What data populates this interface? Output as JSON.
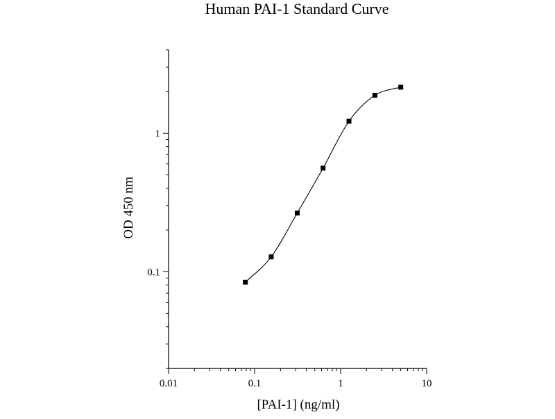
{
  "chart_data": {
    "type": "scatter",
    "title": "Human PAI-1 Standard Curve",
    "xlabel": "[PAI-1] (ng/ml)",
    "ylabel": "OD 450 nm",
    "xscale": "log",
    "yscale": "log",
    "xlim": [
      0.01,
      10
    ],
    "ylim": [
      0.02,
      4
    ],
    "x_ticks": [
      {
        "value": 0.01,
        "label": "0.01"
      },
      {
        "value": 0.1,
        "label": "0.1"
      },
      {
        "value": 1,
        "label": "1"
      },
      {
        "value": 10,
        "label": "10"
      }
    ],
    "y_ticks": [
      {
        "value": 0.1,
        "label": "0.1"
      },
      {
        "value": 1,
        "label": "1"
      }
    ],
    "grid": false,
    "legend": "none",
    "marker": "square",
    "fit_line": "smooth curve through points",
    "color": "#000000",
    "series": [
      {
        "x": [
          0.078,
          0.156,
          0.313,
          0.625,
          1.25,
          2.5,
          5
        ],
        "y": [
          0.084,
          0.128,
          0.265,
          0.56,
          1.22,
          1.88,
          2.15
        ]
      }
    ]
  }
}
